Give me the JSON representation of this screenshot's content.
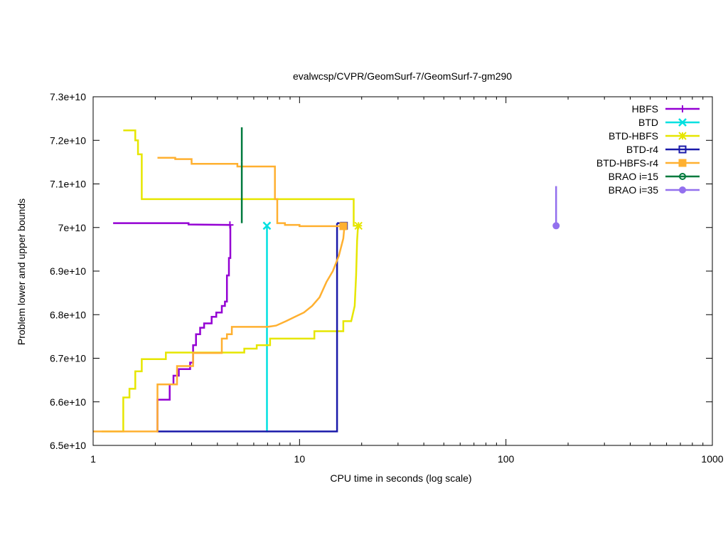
{
  "chart_data": {
    "type": "line",
    "title": "evalwcsp/CVPR/GeomSurf-7/GeomSurf-7-gm290",
    "xlabel": "CPU time in seconds (log scale)",
    "ylabel": "Problem lower and upper bounds",
    "xscale": "log",
    "xlim": [
      1,
      1000
    ],
    "ylim": [
      65000000000,
      73000000000
    ],
    "xticks": [
      1,
      10,
      100,
      1000
    ],
    "xtick_labels": [
      "1",
      "10",
      "100",
      "1000"
    ],
    "yticks": [
      65000000000,
      66000000000,
      67000000000,
      68000000000,
      69000000000,
      70000000000,
      71000000000,
      72000000000,
      73000000000
    ],
    "ytick_labels": [
      "6.5e+10",
      "6.6e+10",
      "6.7e+10",
      "6.8e+10",
      "6.9e+10",
      "7e+10",
      "7.1e+10",
      "7.2e+10",
      "7.3e+10"
    ],
    "grid": false,
    "legend_position": "top-right",
    "series": [
      {
        "name": "HBFS",
        "color": "#9400d3",
        "marker": "plus",
        "upper": [
          [
            1.25,
            70100000000
          ],
          [
            2.9,
            70100000000
          ],
          [
            2.9,
            70070000000
          ],
          [
            4.6,
            70060000000
          ]
        ],
        "lower": [
          [
            2.05,
            65300000000
          ],
          [
            2.05,
            66050000000
          ],
          [
            2.35,
            66050000000
          ],
          [
            2.35,
            66400000000
          ],
          [
            2.45,
            66400000000
          ],
          [
            2.45,
            66600000000
          ],
          [
            2.6,
            66600000000
          ],
          [
            2.6,
            66750000000
          ],
          [
            2.95,
            66750000000
          ],
          [
            2.95,
            66900000000
          ],
          [
            3.05,
            66900000000
          ],
          [
            3.05,
            67300000000
          ],
          [
            3.15,
            67300000000
          ],
          [
            3.15,
            67550000000
          ],
          [
            3.3,
            67550000000
          ],
          [
            3.3,
            67700000000
          ],
          [
            3.45,
            67700000000
          ],
          [
            3.45,
            67800000000
          ],
          [
            3.75,
            67800000000
          ],
          [
            3.75,
            67950000000
          ],
          [
            3.95,
            67950000000
          ],
          [
            3.95,
            68050000000
          ],
          [
            4.2,
            68050000000
          ],
          [
            4.2,
            68200000000
          ],
          [
            4.35,
            68200000000
          ],
          [
            4.35,
            68300000000
          ],
          [
            4.45,
            68300000000
          ],
          [
            4.45,
            68900000000
          ],
          [
            4.55,
            68900000000
          ],
          [
            4.55,
            69300000000
          ],
          [
            4.62,
            69300000000
          ],
          [
            4.62,
            70060000000
          ]
        ],
        "end": [
          4.6,
          70060000000
        ]
      },
      {
        "name": "BTD",
        "color": "#00e0e0",
        "marker": "cross",
        "upper": [],
        "lower": [
          [
            6.95,
            65300000000
          ],
          [
            6.95,
            70040000000
          ]
        ],
        "end": [
          6.95,
          70040000000
        ]
      },
      {
        "name": "BTD-HBFS",
        "color": "#e6e600",
        "marker": "star",
        "upper": [
          [
            1.4,
            72230000000
          ],
          [
            1.6,
            72230000000
          ],
          [
            1.6,
            72000000000
          ],
          [
            1.65,
            72000000000
          ],
          [
            1.65,
            71680000000
          ],
          [
            1.72,
            71680000000
          ],
          [
            1.72,
            70650000000
          ],
          [
            18.3,
            70650000000
          ],
          [
            18.3,
            70040000000
          ],
          [
            19.3,
            70040000000
          ]
        ],
        "lower": [
          [
            1.1,
            65320000000
          ],
          [
            1.4,
            65320000000
          ],
          [
            1.4,
            66100000000
          ],
          [
            1.5,
            66100000000
          ],
          [
            1.5,
            66300000000
          ],
          [
            1.6,
            66300000000
          ],
          [
            1.6,
            66700000000
          ],
          [
            1.72,
            66700000000
          ],
          [
            1.72,
            66980000000
          ],
          [
            2.25,
            66980000000
          ],
          [
            2.25,
            67130000000
          ],
          [
            5.4,
            67130000000
          ],
          [
            5.4,
            67220000000
          ],
          [
            6.2,
            67220000000
          ],
          [
            6.2,
            67300000000
          ],
          [
            7.2,
            67300000000
          ],
          [
            7.2,
            67450000000
          ],
          [
            11.8,
            67450000000
          ],
          [
            11.8,
            67620000000
          ],
          [
            16.3,
            67620000000
          ],
          [
            16.3,
            67850000000
          ],
          [
            17.8,
            67850000000
          ],
          [
            18.5,
            68200000000
          ],
          [
            18.8,
            68900000000
          ],
          [
            19.0,
            69700000000
          ],
          [
            19.2,
            70040000000
          ]
        ],
        "end": [
          19.3,
          70040000000
        ]
      },
      {
        "name": "BTD-r4",
        "color": "#1a1aaa",
        "marker": "square",
        "upper": [
          [
            15.2,
            70100000000
          ],
          [
            16.4,
            70100000000
          ],
          [
            16.4,
            70040000000
          ]
        ],
        "lower": [
          [
            2.05,
            65320000000
          ],
          [
            15.2,
            65320000000
          ],
          [
            15.2,
            70100000000
          ]
        ],
        "end": [
          16.4,
          70040000000
        ]
      },
      {
        "name": "BTD-HBFS-r4",
        "color": "#ffb030",
        "marker": "filled-square",
        "upper": [
          [
            2.05,
            71600000000
          ],
          [
            2.5,
            71600000000
          ],
          [
            2.5,
            71570000000
          ],
          [
            3.0,
            71570000000
          ],
          [
            3.0,
            71460000000
          ],
          [
            5.0,
            71460000000
          ],
          [
            5.0,
            71400000000
          ],
          [
            7.6,
            71400000000
          ],
          [
            7.6,
            70650000000
          ],
          [
            7.8,
            70650000000
          ],
          [
            7.8,
            70100000000
          ],
          [
            8.5,
            70100000000
          ],
          [
            8.5,
            70060000000
          ],
          [
            10.0,
            70060000000
          ],
          [
            10.0,
            70030000000
          ],
          [
            16.3,
            70030000000
          ]
        ],
        "lower": [
          [
            1.0,
            65320000000
          ],
          [
            2.05,
            65320000000
          ],
          [
            2.05,
            66400000000
          ],
          [
            2.55,
            66400000000
          ],
          [
            2.55,
            66820000000
          ],
          [
            3.05,
            66820000000
          ],
          [
            3.05,
            67120000000
          ],
          [
            4.2,
            67120000000
          ],
          [
            4.2,
            67450000000
          ],
          [
            4.45,
            67450000000
          ],
          [
            4.45,
            67550000000
          ],
          [
            4.7,
            67550000000
          ],
          [
            4.7,
            67720000000
          ],
          [
            7.0,
            67720000000
          ],
          [
            7.7,
            67750000000
          ],
          [
            8.6,
            67850000000
          ],
          [
            9.5,
            67950000000
          ],
          [
            10.5,
            68050000000
          ],
          [
            11.5,
            68200000000
          ],
          [
            12.5,
            68400000000
          ],
          [
            13.5,
            68750000000
          ],
          [
            14.5,
            69000000000
          ],
          [
            15.5,
            69350000000
          ],
          [
            16.3,
            69750000000
          ],
          [
            16.5,
            70030000000
          ]
        ],
        "end": [
          16.3,
          70030000000
        ]
      },
      {
        "name": "BRAO i=15",
        "color": "#007a3d",
        "marker": "circle",
        "upper": [
          [
            5.25,
            72300000000
          ],
          [
            5.25,
            71500000000
          ]
        ],
        "lower": [
          [
            5.25,
            70100000000
          ],
          [
            5.25,
            71500000000
          ]
        ],
        "end": null
      },
      {
        "name": "BRAO i=35",
        "color": "#9370ee",
        "marker": "filled-circle",
        "upper": [
          [
            175,
            70950000000
          ],
          [
            175,
            70040000000
          ]
        ],
        "lower": [],
        "end": [
          175,
          70040000000
        ]
      }
    ]
  }
}
